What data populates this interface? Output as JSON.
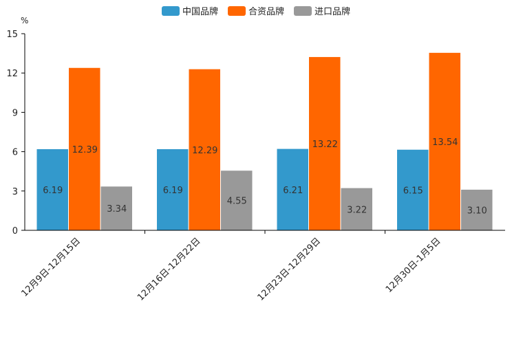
{
  "chart_data": {
    "type": "bar",
    "title": "",
    "xlabel": "",
    "ylabel": "%",
    "ylim": [
      0,
      15
    ],
    "yticks": [
      "0",
      "3",
      "6",
      "9",
      "12",
      "15"
    ],
    "categories": [
      "12月9日-12月15日",
      "12月16日-12月22日",
      "12月23日-12月29日",
      "12月30日-1月5日"
    ],
    "series": [
      {
        "name": "中国品牌",
        "color": "#3399cc",
        "values": [
          6.19,
          6.19,
          6.21,
          6.15
        ],
        "labels": [
          "6.19",
          "6.19",
          "6.21",
          "6.15"
        ]
      },
      {
        "name": "合资品牌",
        "color": "#ff6600",
        "values": [
          12.39,
          12.29,
          13.22,
          13.54
        ],
        "labels": [
          "12.39",
          "12.29",
          "13.22",
          "13.54"
        ]
      },
      {
        "name": "进口品牌",
        "color": "#999999",
        "values": [
          3.34,
          4.55,
          3.22,
          3.1
        ],
        "labels": [
          "3.34",
          "4.55",
          "3.22",
          "3.10"
        ]
      }
    ],
    "legend_position": "top-center",
    "grid": false
  }
}
